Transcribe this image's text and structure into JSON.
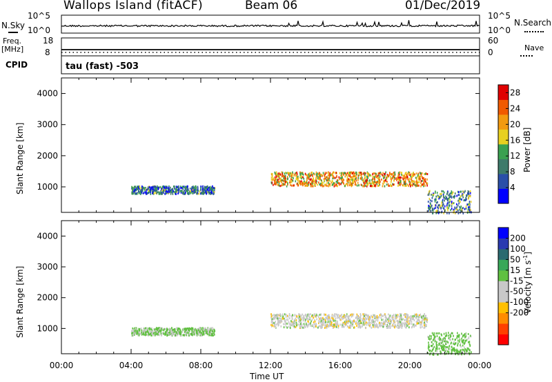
{
  "header": {
    "site": "Wallops Island (fitACF)",
    "beam": "Beam 06",
    "date": "01/Dec/2019"
  },
  "top_panel_labels": {
    "nsky": "N.Sky",
    "nsky_axis_top": "10^5",
    "nsky_axis_bottom": "10^0",
    "nsearch": "N.Search",
    "nsearch_axis_top": "10^5",
    "nsearch_axis_bottom": "10^0",
    "freq_line1": "Freq.",
    "freq_line2": "[MHz]",
    "freq_axis_top": "18",
    "freq_axis_bottom": "8",
    "nave": "Nave",
    "nave_axis_top": "60",
    "nave_axis_bottom": "0",
    "cpid": "CPID",
    "cpid_text": "tau (fast) -503"
  },
  "colors": {
    "power_scale": [
      "#0000ff",
      "#2a4fa8",
      "#3d7a6a",
      "#3aa050",
      "#e8d020",
      "#f29a10",
      "#f05a00",
      "#e00000"
    ],
    "velocity_scale": [
      "#ff0000",
      "#ff4000",
      "#ff8c00",
      "#ffc000",
      "#c8c8c8",
      "#c8c8c8",
      "#60c040",
      "#38a858",
      "#2a6a70",
      "#2a3ab0",
      "#0000ff"
    ]
  },
  "chart_data": [
    {
      "type": "heatmap",
      "title": "",
      "xlabel": "",
      "ylabel": "Slant Range [km]",
      "x_ticks": [
        "00:00",
        "04:00",
        "08:00",
        "12:00",
        "16:00",
        "20:00",
        "00:00"
      ],
      "y_ticks": [
        1000,
        2000,
        3000,
        4000
      ],
      "xlim_hours": [
        0,
        24
      ],
      "ylim_km": [
        180,
        4500
      ],
      "colorbar": {
        "label": "Power [dB]",
        "ticks": [
          4,
          8,
          12,
          16,
          20,
          24,
          28
        ],
        "range": [
          0,
          30
        ]
      },
      "echo_regions": [
        {
          "t_start": 4.0,
          "t_end": 8.8,
          "range_min": 800,
          "range_max": 1050,
          "value": 8
        },
        {
          "t_start": 12.0,
          "t_end": 21.0,
          "range_min": 1050,
          "range_max": 1500,
          "value": 20
        },
        {
          "t_start": 21.0,
          "t_end": 23.5,
          "range_min": 180,
          "range_max": 900,
          "value": 10
        }
      ]
    },
    {
      "type": "heatmap",
      "title": "",
      "xlabel": "Time UT",
      "ylabel": "Slant Range [km]",
      "x_ticks": [
        "00:00",
        "04:00",
        "08:00",
        "12:00",
        "16:00",
        "20:00",
        "00:00"
      ],
      "y_ticks": [
        1000,
        2000,
        3000,
        4000
      ],
      "xlim_hours": [
        0,
        24
      ],
      "ylim_km": [
        180,
        4500
      ],
      "colorbar": {
        "label": "Velocity [m s^-1]",
        "ticks": [
          200,
          100,
          50,
          15,
          -15,
          -50,
          -100,
          -200
        ]
      },
      "echo_regions": [
        {
          "t_start": 4.0,
          "t_end": 8.8,
          "range_min": 800,
          "range_max": 1050,
          "value": 20
        },
        {
          "t_start": 12.0,
          "t_end": 21.0,
          "range_min": 1050,
          "range_max": 1500,
          "value": 0
        },
        {
          "t_start": 21.0,
          "t_end": 23.5,
          "range_min": 180,
          "range_max": 900,
          "value": 30
        }
      ]
    }
  ]
}
